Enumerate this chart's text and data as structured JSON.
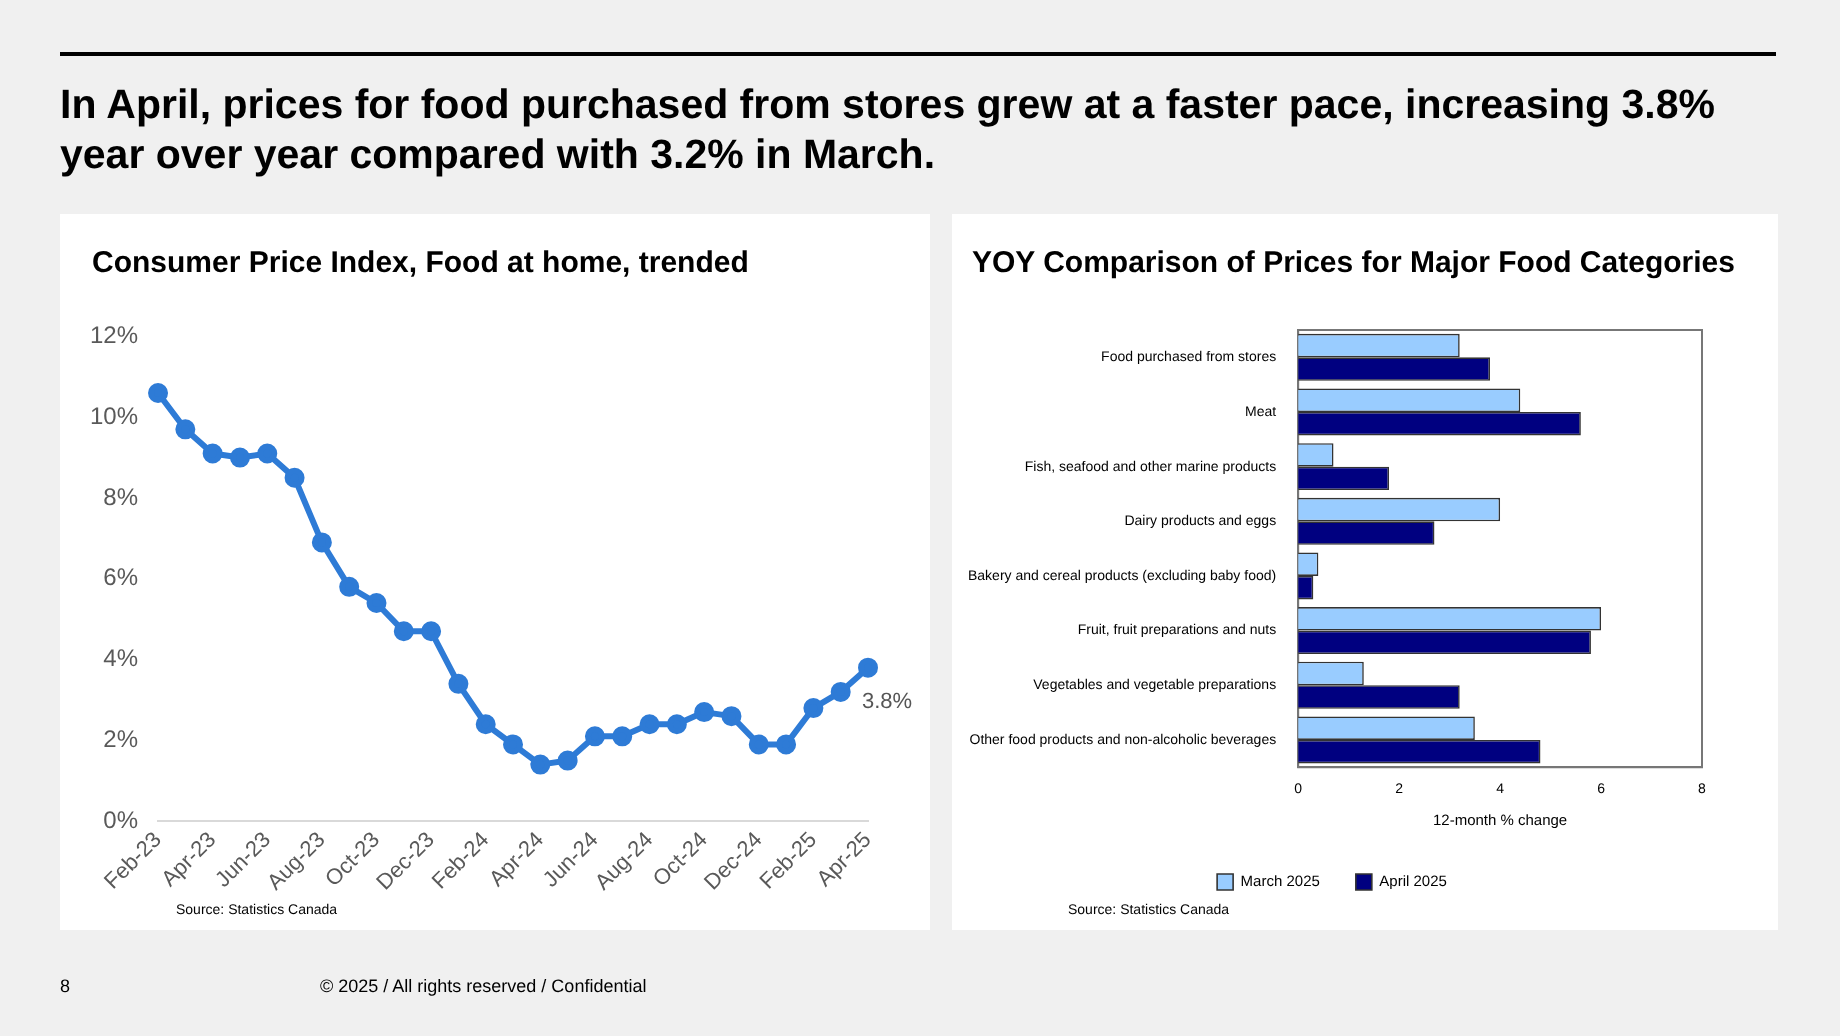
{
  "chart_data": [
    {
      "type": "other",
      "title": "In April, prices for food purchased from stores grew at a faster pace, increasing 3.8% year over year compared with 3.2% in March.",
      "annotations": [
        "8",
        "© 2025 / All rights reserved / Confidential"
      ]
    },
    {
      "type": "line",
      "title": "Consumer Price Index, Food at home, trended",
      "categories": [
        "Feb-23",
        null,
        "Apr-23",
        null,
        "Jun-23",
        null,
        "Aug-23",
        null,
        "Oct-23",
        null,
        "Dec-23",
        null,
        "Feb-24",
        null,
        "Apr-24",
        null,
        "Jun-24",
        null,
        "Aug-24",
        null,
        "Oct-24",
        null,
        "Dec-24",
        null,
        "Feb-25",
        null,
        "Apr-25"
      ],
      "values": [
        10.6,
        9.7,
        9.1,
        9.0,
        9.1,
        8.5,
        6.9,
        5.8,
        5.4,
        4.7,
        4.7,
        3.4,
        2.4,
        1.9,
        1.4,
        1.5,
        2.1,
        2.1,
        2.4,
        2.4,
        2.7,
        2.6,
        1.9,
        1.9,
        2.8,
        3.2,
        3.8
      ],
      "value_labels": [
        null,
        null,
        null,
        null,
        null,
        null,
        null,
        null,
        null,
        null,
        null,
        null,
        null,
        null,
        null,
        null,
        null,
        null,
        null,
        null,
        null,
        null,
        null,
        null,
        null,
        null,
        "3.8%"
      ],
      "color": "#2e7bd6",
      "marker": "circle",
      "grid": false,
      "legend": false,
      "ylim": [
        0,
        12
      ],
      "yticks": [
        {
          "value": 0,
          "label": "0%"
        },
        {
          "value": 2,
          "label": "2%"
        },
        {
          "value": 4,
          "label": "4%"
        },
        {
          "value": 6,
          "label": "6%"
        },
        {
          "value": 8,
          "label": "8%"
        },
        {
          "value": 10,
          "label": "10%"
        },
        {
          "value": 12,
          "label": "12%"
        }
      ],
      "annotations": [
        "Source: Statistics Canada"
      ]
    },
    {
      "type": "bar",
      "orientation": "horizontal",
      "title": "YOY Comparison of Prices for Major Food Categories",
      "categories": [
        "Food purchased from stores",
        "Meat",
        "Fish, seafood and other marine products",
        "Dairy products and eggs",
        "Bakery and cereal products (excluding baby food)",
        "Fruit, fruit preparations and nuts",
        "Vegetables and vegetable preparations",
        "Other food products and non-alcoholic beverages"
      ],
      "series": [
        {
          "name": "March 2025",
          "color": "#99ccff",
          "values": [
            3.2,
            4.4,
            0.7,
            4.0,
            0.4,
            6.0,
            1.3,
            3.5
          ]
        },
        {
          "name": "April 2025",
          "color": "#000080",
          "values": [
            3.8,
            5.6,
            1.8,
            2.7,
            0.3,
            5.8,
            3.2,
            4.8
          ]
        }
      ],
      "xlim": [
        0,
        8
      ],
      "xticks": [
        0,
        2,
        4,
        6,
        8
      ],
      "xlabel": "12-month % change",
      "grid": false,
      "legend": "bottom",
      "annotations": [
        "Source: Statistics Canada"
      ]
    }
  ]
}
